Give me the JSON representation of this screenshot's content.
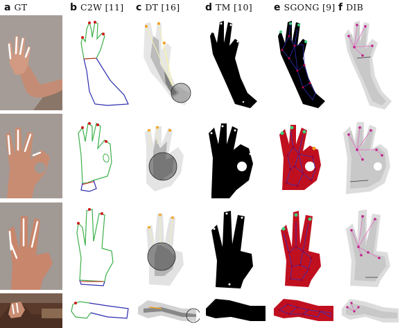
{
  "headers": [
    {
      "letter": "a",
      "title": "GT"
    },
    {
      "letter": "b",
      "title": "C2W [11]"
    },
    {
      "letter": "c",
      "title": "DT [16]"
    },
    {
      "letter": "d",
      "title": "TM [10]"
    },
    {
      "letter": "e",
      "title": "SGONG [9]"
    },
    {
      "letter": "f",
      "title": "DIB"
    }
  ],
  "colors": {
    "contour_green": "#3bb04a",
    "contour_blue": "#2a2ab0",
    "fingertip_red": "#d01818",
    "fingertip_orange": "#f0a020",
    "sgong_mesh": "#3030c0",
    "sgong_fill": "#c01020",
    "sgong_node": "#c00040",
    "sgong_tip": "#40d080",
    "dib_pink": "#e070c0",
    "skin": "#c89078"
  },
  "icons": [
    "hand-photo",
    "hand-contour",
    "distance-transform",
    "template-mask",
    "sgong-graph",
    "dib-skeleton"
  ]
}
